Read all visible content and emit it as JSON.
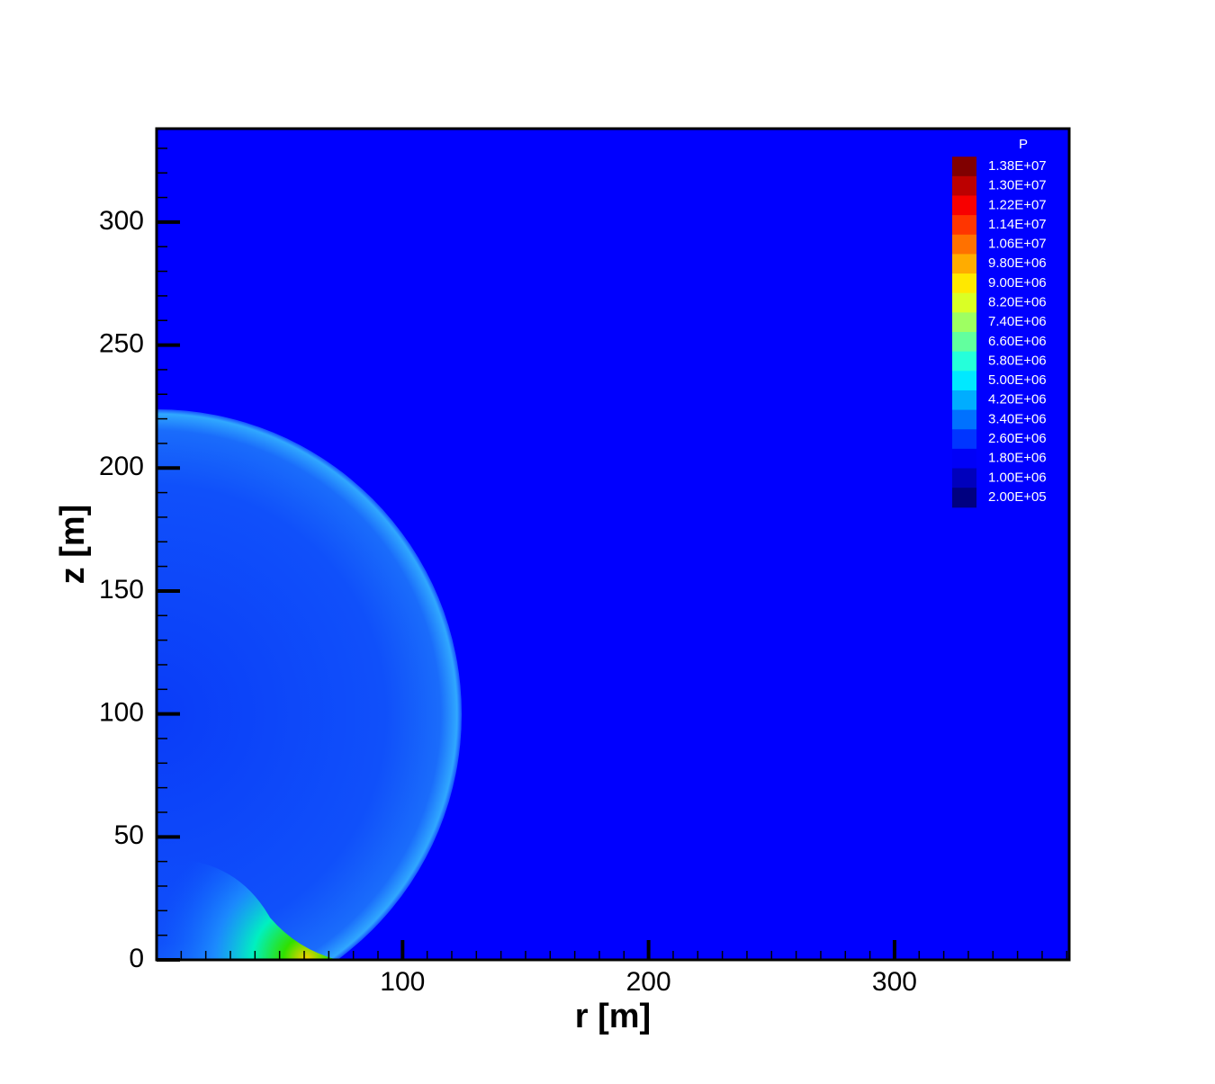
{
  "chart_data": {
    "type": "contour",
    "x_label": "r [m]",
    "y_label": "z [m]",
    "xlim": [
      0,
      371
    ],
    "ylim": [
      0,
      338
    ],
    "xticks": [
      100,
      200,
      300
    ],
    "yticks": [
      0,
      50,
      100,
      150,
      200,
      250,
      300
    ],
    "colorbar": {
      "title": "P",
      "levels": [
        {
          "value": 13800000,
          "label": "1.38E+07"
        },
        {
          "value": 13000000,
          "label": "1.30E+07"
        },
        {
          "value": 12200000,
          "label": "1.22E+07"
        },
        {
          "value": 11400000,
          "label": "1.14E+07"
        },
        {
          "value": 10600000,
          "label": "1.06E+07"
        },
        {
          "value": 9800000,
          "label": "9.80E+06"
        },
        {
          "value": 9000000,
          "label": "9.00E+06"
        },
        {
          "value": 8200000,
          "label": "8.20E+06"
        },
        {
          "value": 7400000,
          "label": "7.40E+06"
        },
        {
          "value": 6600000,
          "label": "6.60E+06"
        },
        {
          "value": 5800000,
          "label": "5.80E+06"
        },
        {
          "value": 5000000,
          "label": "5.00E+06"
        },
        {
          "value": 4200000,
          "label": "4.20E+06"
        },
        {
          "value": 3400000,
          "label": "3.40E+06"
        },
        {
          "value": 2600000,
          "label": "2.60E+06"
        },
        {
          "value": 1800000,
          "label": "1.80E+06"
        },
        {
          "value": 1000000,
          "label": "1.00E+06"
        },
        {
          "value": 200000,
          "label": "2.00E+05"
        }
      ]
    }
  }
}
